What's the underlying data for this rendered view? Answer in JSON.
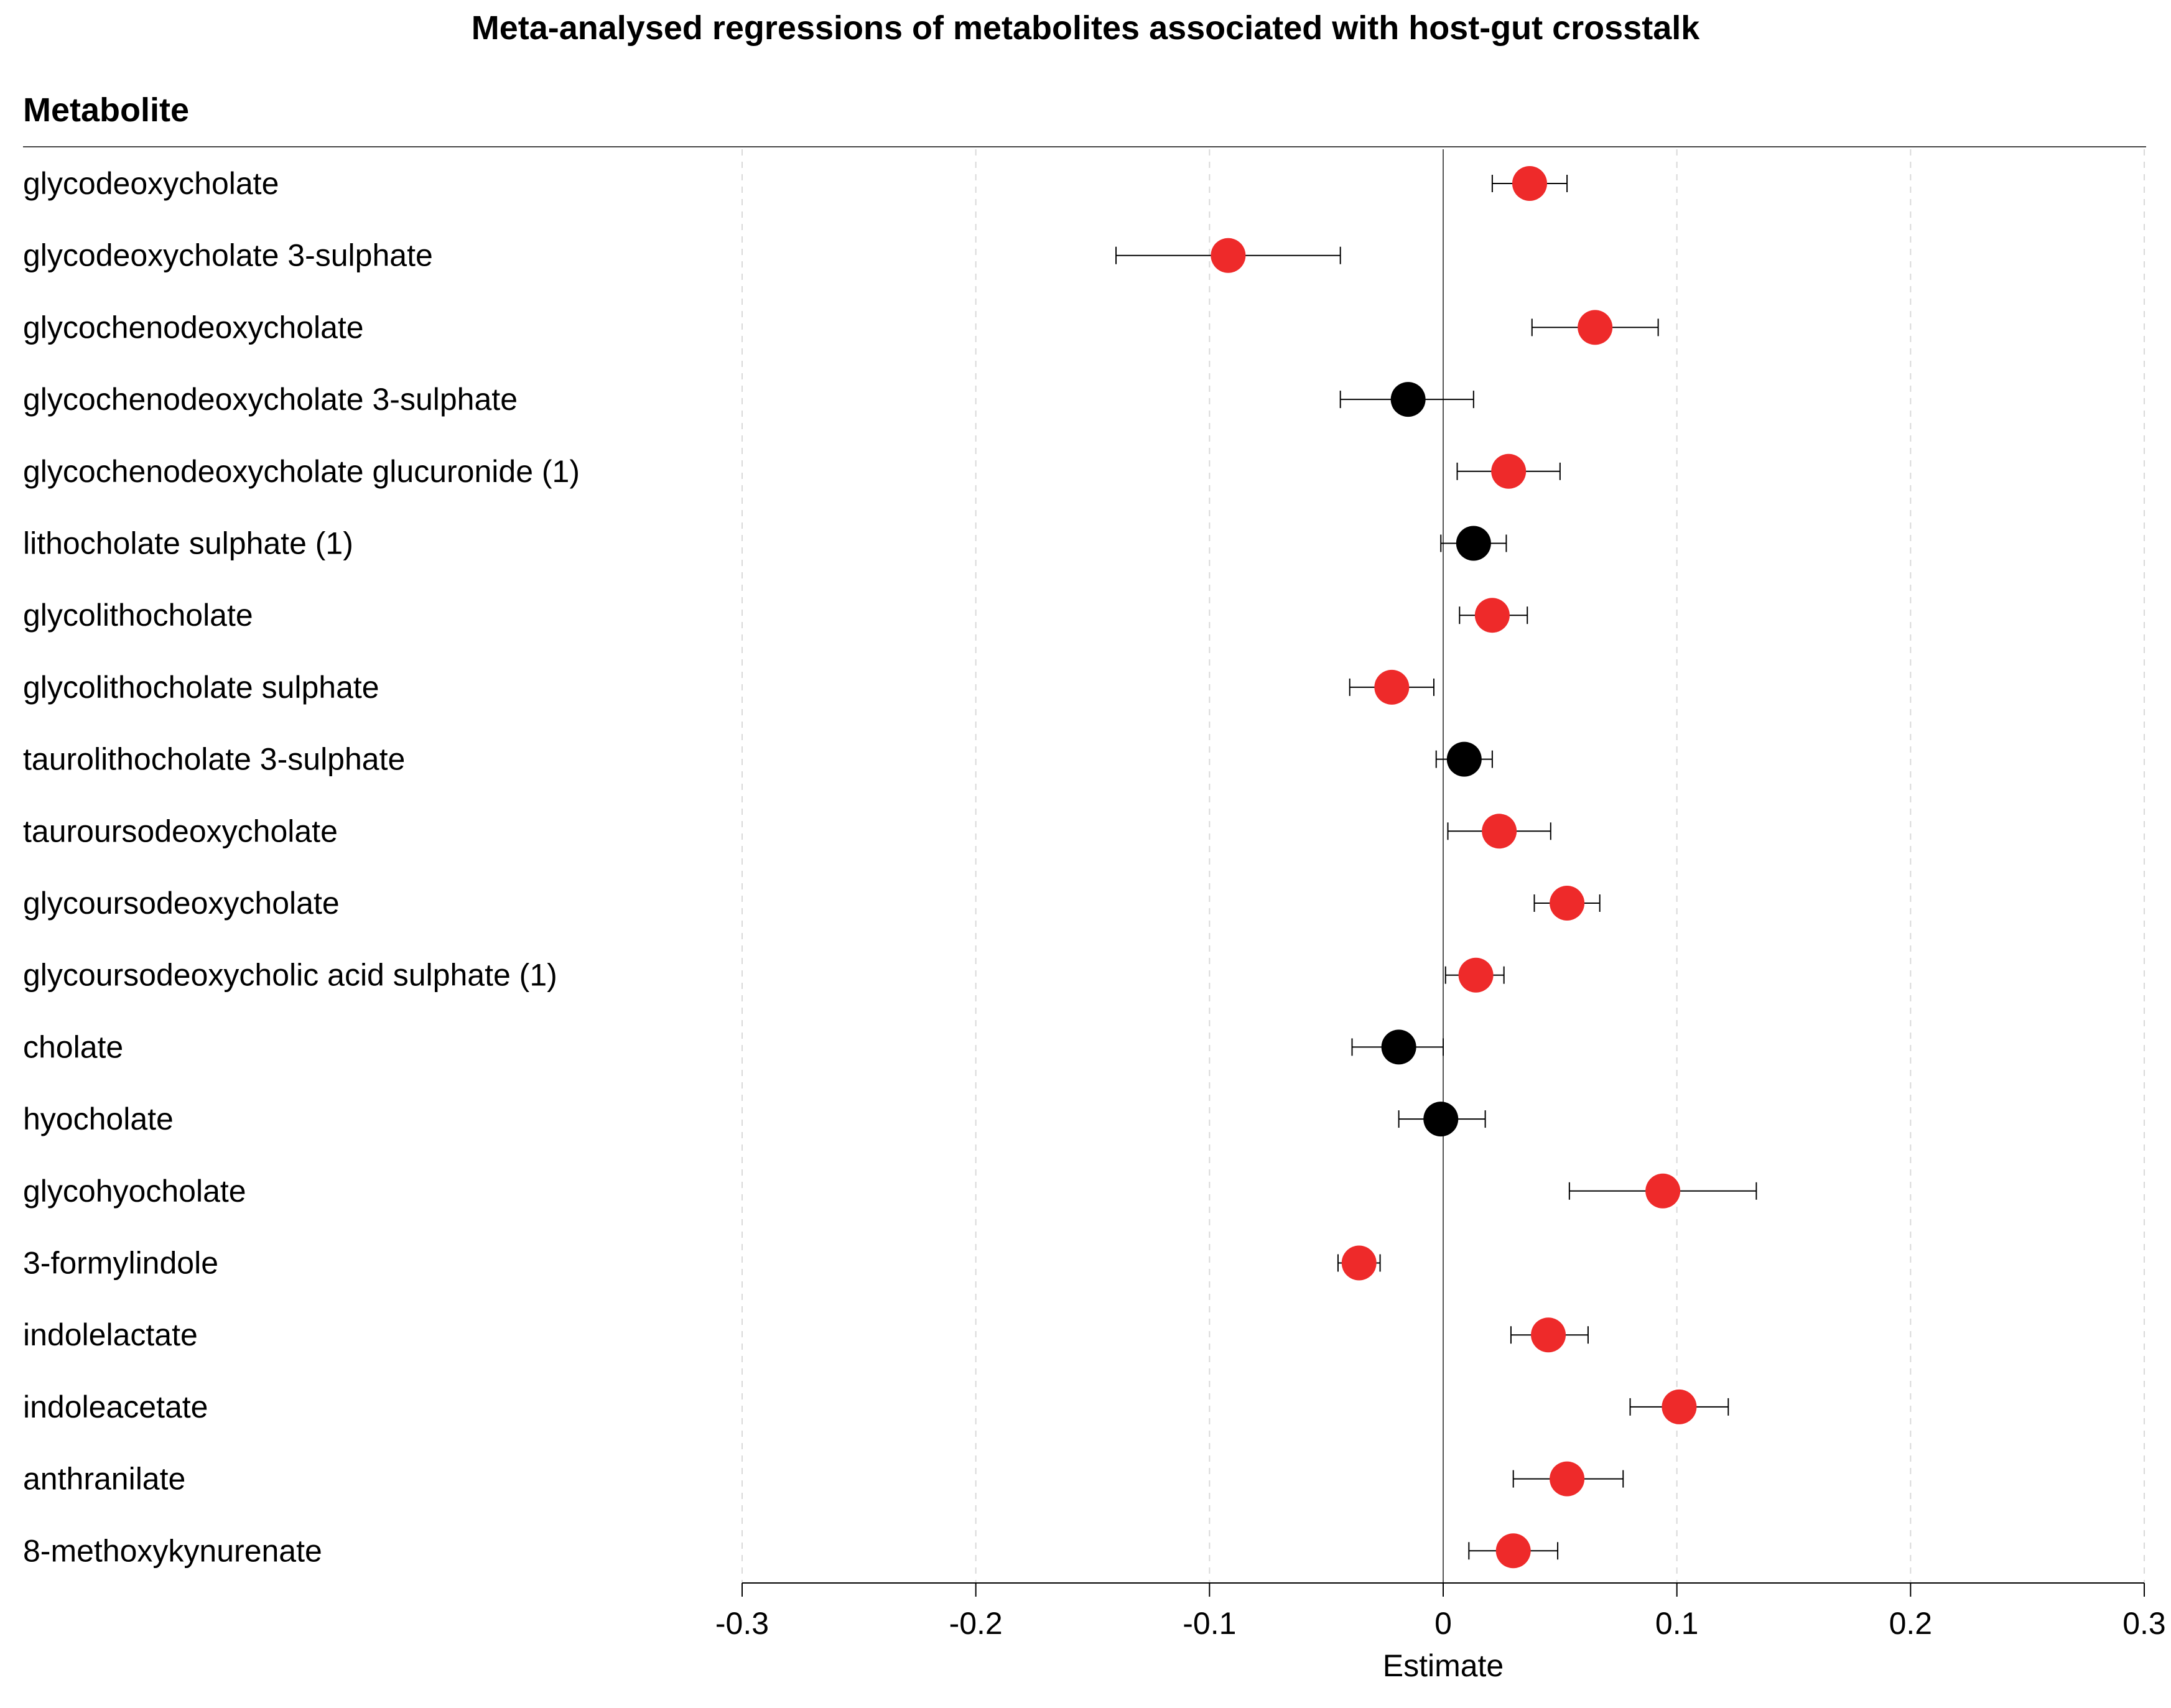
{
  "chart_data": {
    "type": "scatter",
    "title": "Meta-analysed regressions of metabolites associated with host-gut crosstalk",
    "column_header": "Metabolite",
    "xlabel": "Estimate",
    "ylabel": "",
    "xlim": [
      -0.3,
      0.3
    ],
    "x_ticks": [
      -0.3,
      -0.2,
      -0.1,
      0,
      0.1,
      0.2,
      0.3
    ],
    "x_tick_labels": [
      "-0.3",
      "-0.2",
      "-0.1",
      "0",
      "0.1",
      "0.2",
      "0.3"
    ],
    "grid": "vertical dashed",
    "reference_line": 0,
    "colors": {
      "significant": "#ee2a2a",
      "not_significant": "#000000",
      "error_bar": "#000000",
      "grid": "#d9d9d9",
      "rule": "#444444"
    },
    "rows": [
      {
        "label": "glycodeoxycholate",
        "estimate": 0.037,
        "lower": 0.021,
        "upper": 0.053,
        "significant": true
      },
      {
        "label": "glycodeoxycholate 3-sulphate",
        "estimate": -0.092,
        "lower": -0.14,
        "upper": -0.044,
        "significant": true
      },
      {
        "label": "glycochenodeoxycholate",
        "estimate": 0.065,
        "lower": 0.038,
        "upper": 0.092,
        "significant": true
      },
      {
        "label": "glycochenodeoxycholate 3-sulphate",
        "estimate": -0.015,
        "lower": -0.044,
        "upper": 0.013,
        "significant": false
      },
      {
        "label": "glycochenodeoxycholate glucuronide (1)",
        "estimate": 0.028,
        "lower": 0.006,
        "upper": 0.05,
        "significant": true
      },
      {
        "label": "lithocholate sulphate (1)",
        "estimate": 0.013,
        "lower": -0.001,
        "upper": 0.027,
        "significant": false
      },
      {
        "label": "glycolithocholate",
        "estimate": 0.021,
        "lower": 0.007,
        "upper": 0.036,
        "significant": true
      },
      {
        "label": "glycolithocholate sulphate",
        "estimate": -0.022,
        "lower": -0.04,
        "upper": -0.004,
        "significant": true
      },
      {
        "label": "taurolithocholate 3-sulphate",
        "estimate": 0.009,
        "lower": -0.003,
        "upper": 0.021,
        "significant": false
      },
      {
        "label": "tauroursodeoxycholate",
        "estimate": 0.024,
        "lower": 0.002,
        "upper": 0.046,
        "significant": true
      },
      {
        "label": "glycoursodeoxycholate",
        "estimate": 0.053,
        "lower": 0.039,
        "upper": 0.067,
        "significant": true
      },
      {
        "label": "glycoursodeoxycholic acid sulphate (1)",
        "estimate": 0.014,
        "lower": 0.001,
        "upper": 0.026,
        "significant": true
      },
      {
        "label": "cholate",
        "estimate": -0.019,
        "lower": -0.039,
        "upper": 0.0,
        "significant": false
      },
      {
        "label": "hyocholate",
        "estimate": -0.001,
        "lower": -0.019,
        "upper": 0.018,
        "significant": false
      },
      {
        "label": "glycohyocholate",
        "estimate": 0.094,
        "lower": 0.054,
        "upper": 0.134,
        "significant": true
      },
      {
        "label": "3-formylindole",
        "estimate": -0.036,
        "lower": -0.045,
        "upper": -0.027,
        "significant": true
      },
      {
        "label": "indolelactate",
        "estimate": 0.045,
        "lower": 0.029,
        "upper": 0.062,
        "significant": true
      },
      {
        "label": "indoleacetate",
        "estimate": 0.101,
        "lower": 0.08,
        "upper": 0.122,
        "significant": true
      },
      {
        "label": "anthranilate",
        "estimate": 0.053,
        "lower": 0.03,
        "upper": 0.077,
        "significant": true
      },
      {
        "label": "8-methoxykynurenate",
        "estimate": 0.03,
        "lower": 0.011,
        "upper": 0.049,
        "significant": true
      }
    ]
  }
}
